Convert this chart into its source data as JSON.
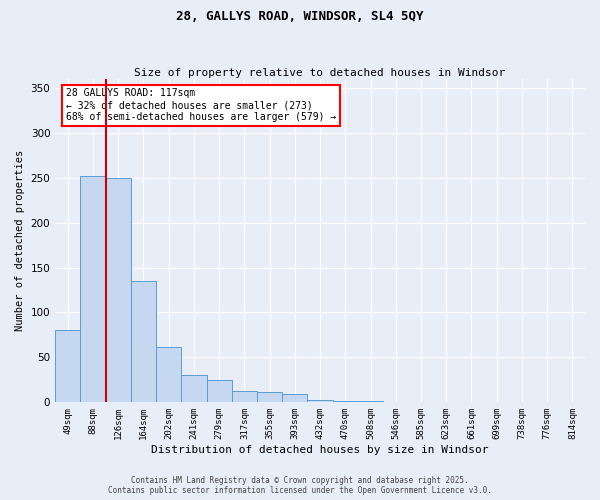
{
  "title_line1": "28, GALLYS ROAD, WINDSOR, SL4 5QY",
  "title_line2": "Size of property relative to detached houses in Windsor",
  "xlabel": "Distribution of detached houses by size in Windsor",
  "ylabel": "Number of detached properties",
  "categories": [
    "49sqm",
    "88sqm",
    "126sqm",
    "164sqm",
    "202sqm",
    "241sqm",
    "279sqm",
    "317sqm",
    "355sqm",
    "393sqm",
    "432sqm",
    "470sqm",
    "508sqm",
    "546sqm",
    "585sqm",
    "623sqm",
    "661sqm",
    "699sqm",
    "738sqm",
    "776sqm",
    "814sqm"
  ],
  "values": [
    80,
    252,
    250,
    135,
    62,
    30,
    25,
    13,
    12,
    9,
    3,
    1,
    1,
    0,
    0,
    0,
    0,
    0,
    0,
    0,
    0
  ],
  "bar_color": "#c5d8f0",
  "bar_edge_color": "#5b9bd5",
  "red_line_x": 1.5,
  "annotation_text": "28 GALLYS ROAD: 117sqm\n← 32% of detached houses are smaller (273)\n68% of semi-detached houses are larger (579) →",
  "annotation_box_color": "white",
  "annotation_box_edge_color": "red",
  "red_line_color": "#cc0000",
  "ylim": [
    0,
    360
  ],
  "yticks": [
    0,
    50,
    100,
    150,
    200,
    250,
    300,
    350
  ],
  "background_color": "#e8eef8",
  "grid_color": "white",
  "footer_line1": "Contains HM Land Registry data © Crown copyright and database right 2025.",
  "footer_line2": "Contains public sector information licensed under the Open Government Licence v3.0."
}
